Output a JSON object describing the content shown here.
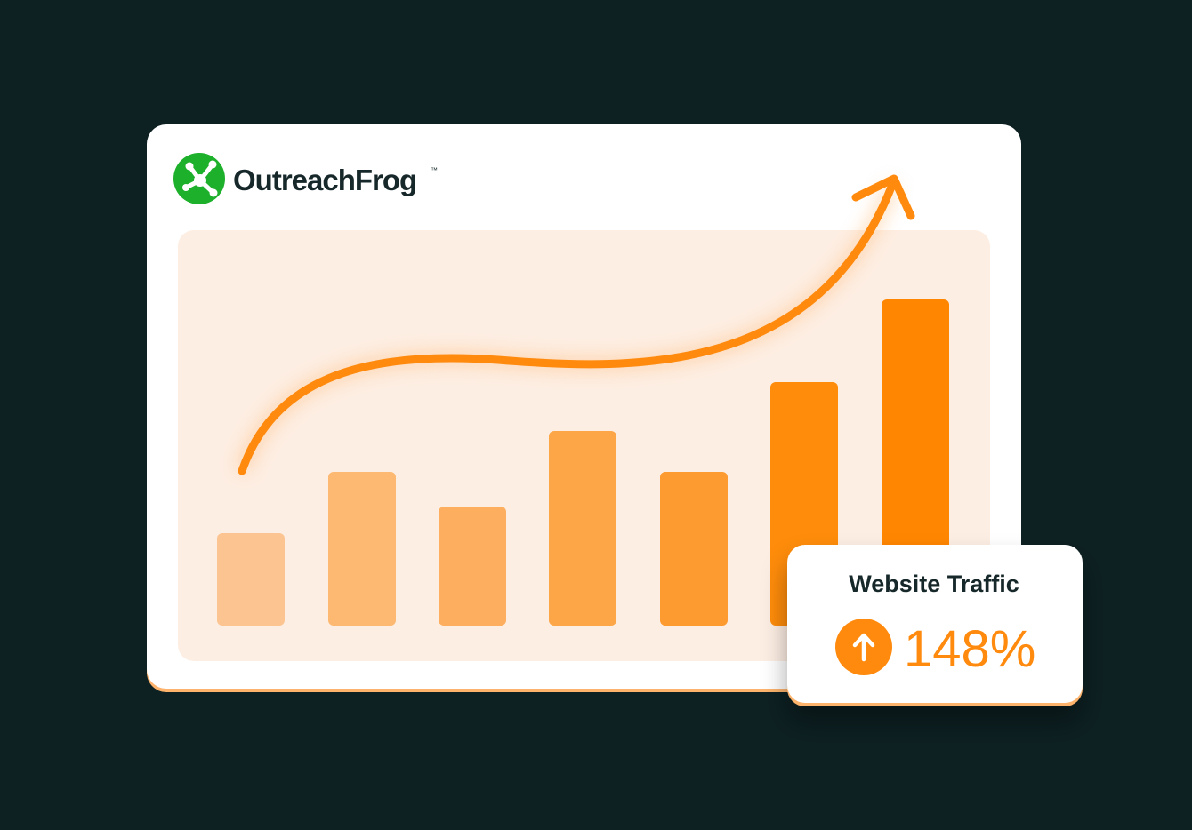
{
  "brand": {
    "name": "OutreachFrog",
    "trademark": "™"
  },
  "stat_card": {
    "title": "Website Traffic",
    "value": "148%"
  }
}
